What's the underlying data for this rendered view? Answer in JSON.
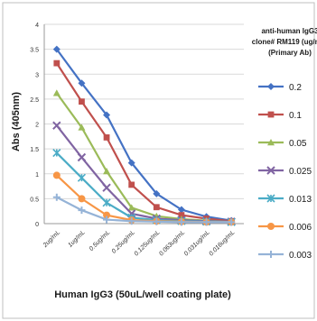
{
  "chart_data": {
    "type": "line",
    "title": "",
    "xlabel": "Human IgG3 (50uL/well coating plate)",
    "ylabel": "Abs (405nm)",
    "ylim": [
      0,
      4
    ],
    "y_ticks": [
      0,
      0.5,
      1,
      1.5,
      2,
      2.5,
      3,
      3.5,
      4
    ],
    "grid": true,
    "legend_position": "right",
    "legend_title": [
      "anti-human IgG3",
      "clone# RM119 (ug/mL)",
      "(Primary Ab)"
    ],
    "categories": [
      "2ug/mL",
      "1ug/mL",
      "0.5ug/mL",
      "0.25ug/mL",
      "0.125ug/mL",
      "0.063ug/mL",
      "0.031ug/mL",
      "0.016ug/mL"
    ],
    "series": [
      {
        "name": "0.2",
        "color": "#4472c4",
        "marker": "diamond",
        "values": [
          3.5,
          2.82,
          2.18,
          1.22,
          0.6,
          0.28,
          0.14,
          0.06
        ]
      },
      {
        "name": "0.1",
        "color": "#c0504d",
        "marker": "square",
        "values": [
          3.22,
          2.45,
          1.73,
          0.78,
          0.33,
          0.17,
          0.1,
          0.05
        ]
      },
      {
        "name": "0.05",
        "color": "#9bbb59",
        "marker": "triangle",
        "values": [
          2.62,
          1.93,
          1.05,
          0.32,
          0.15,
          0.09,
          0.06,
          0.04
        ]
      },
      {
        "name": "0.025",
        "color": "#8064a2",
        "marker": "x",
        "values": [
          1.97,
          1.33,
          0.72,
          0.2,
          0.1,
          0.07,
          0.05,
          0.04
        ]
      },
      {
        "name": "0.013",
        "color": "#4bacc6",
        "marker": "star",
        "values": [
          1.42,
          0.92,
          0.42,
          0.12,
          0.07,
          0.05,
          0.04,
          0.03
        ]
      },
      {
        "name": "0.006",
        "color": "#f79646",
        "marker": "circle",
        "values": [
          0.97,
          0.5,
          0.17,
          0.07,
          0.05,
          0.04,
          0.03,
          0.03
        ]
      },
      {
        "name": "0.003",
        "color": "#95b3d7",
        "marker": "plus",
        "values": [
          0.53,
          0.27,
          0.08,
          0.05,
          0.04,
          0.03,
          0.03,
          0.03
        ]
      }
    ]
  }
}
